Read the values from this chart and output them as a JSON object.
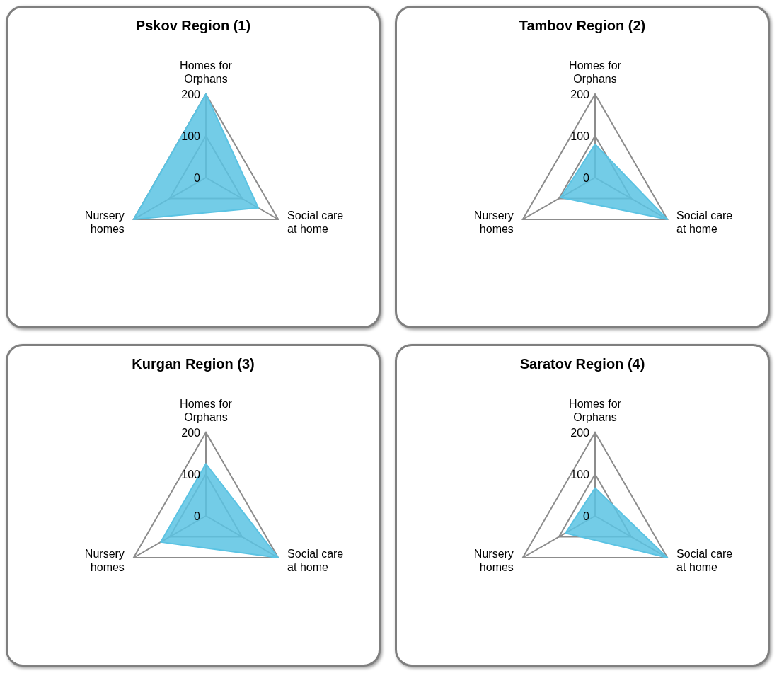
{
  "chart_data": [
    {
      "type": "radar",
      "title": "Pskov Region (1)",
      "categories": [
        "Homes for Orphans",
        "Social care at home",
        "Nursery homes"
      ],
      "ylim": [
        0,
        200
      ],
      "yticks": [
        0,
        100,
        200
      ],
      "grid": true,
      "series": [
        {
          "color": "#5bc3e3",
          "values": [
            200,
            145,
            200
          ]
        }
      ]
    },
    {
      "type": "radar",
      "title": "Tambov Region (2)",
      "categories": [
        "Homes for Orphans",
        "Social care at home",
        "Nursery homes"
      ],
      "ylim": [
        0,
        200
      ],
      "yticks": [
        0,
        100,
        200
      ],
      "grid": true,
      "series": [
        {
          "color": "#5bc3e3",
          "values": [
            80,
            200,
            95
          ]
        }
      ]
    },
    {
      "type": "radar",
      "title": "Kurgan Region (3)",
      "categories": [
        "Homes for Orphans",
        "Social care at home",
        "Nursery homes"
      ],
      "ylim": [
        0,
        200
      ],
      "yticks": [
        0,
        100,
        200
      ],
      "grid": true,
      "series": [
        {
          "color": "#5bc3e3",
          "values": [
            125,
            200,
            125
          ]
        }
      ]
    },
    {
      "type": "radar",
      "title": "Saratov Region (4)",
      "categories": [
        "Homes for Orphans",
        "Social care at home",
        "Nursery homes"
      ],
      "ylim": [
        0,
        200
      ],
      "yticks": [
        0,
        100,
        200
      ],
      "grid": true,
      "series": [
        {
          "color": "#5bc3e3",
          "values": [
            67,
            200,
            82
          ]
        }
      ]
    }
  ]
}
